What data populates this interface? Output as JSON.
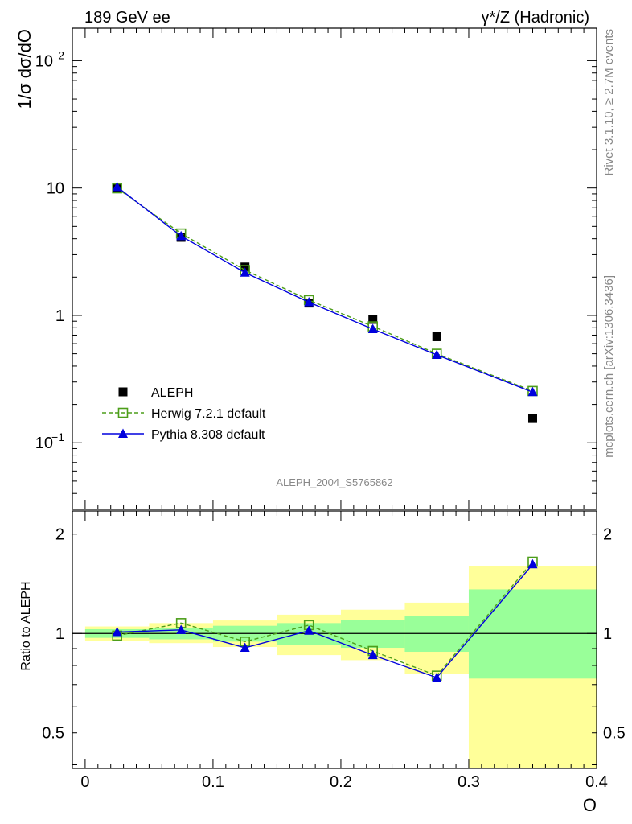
{
  "header": {
    "left": "189 GeV ee",
    "right": "γ*/Z (Hadronic)"
  },
  "side_text": {
    "rivet": "Rivet 3.1.10, ≥ 2.7M events",
    "mcplots": "mcplots.cern.ch [arXiv:1306.3436]"
  },
  "watermark": "ALEPH_2004_S5765862",
  "chart_data": [
    {
      "type": "scatter",
      "panel": "main",
      "ylabel": "1/σ  dσ/dO",
      "yscale": "log",
      "ylim": [
        0.03,
        180
      ],
      "xlim": [
        -0.01,
        0.4
      ],
      "grid": false,
      "legend_placement": "lower-left",
      "yticks": [
        {
          "v": 100,
          "label": "10",
          "sup": "2"
        },
        {
          "v": 10,
          "label": "10",
          "sup": ""
        },
        {
          "v": 1,
          "label": "1",
          "sup": ""
        },
        {
          "v": 0.1,
          "label": "10",
          "sup": "−1"
        }
      ],
      "series": [
        {
          "name": "ALEPH",
          "style": "square-filled",
          "color": "#000000",
          "points": [
            {
              "x": 0.025,
              "y": 10.1
            },
            {
              "x": 0.075,
              "y": 4.1
            },
            {
              "x": 0.125,
              "y": 2.4
            },
            {
              "x": 0.175,
              "y": 1.25
            },
            {
              "x": 0.225,
              "y": 0.93
            },
            {
              "x": 0.275,
              "y": 0.68
            },
            {
              "x": 0.35,
              "y": 0.155
            }
          ]
        },
        {
          "name": "Herwig 7.2.1 default",
          "style": "square-open-dashed",
          "color": "#4d9e1a",
          "points": [
            {
              "x": 0.025,
              "y": 9.95
            },
            {
              "x": 0.075,
              "y": 4.4
            },
            {
              "x": 0.125,
              "y": 2.27
            },
            {
              "x": 0.175,
              "y": 1.32
            },
            {
              "x": 0.225,
              "y": 0.82
            },
            {
              "x": 0.275,
              "y": 0.5
            },
            {
              "x": 0.35,
              "y": 0.255
            }
          ]
        },
        {
          "name": "Pythia 8.308 default",
          "style": "triangle-filled-solid",
          "color": "#0000dd",
          "points": [
            {
              "x": 0.025,
              "y": 10.2
            },
            {
              "x": 0.075,
              "y": 4.2
            },
            {
              "x": 0.125,
              "y": 2.17
            },
            {
              "x": 0.175,
              "y": 1.27
            },
            {
              "x": 0.225,
              "y": 0.78
            },
            {
              "x": 0.275,
              "y": 0.49
            },
            {
              "x": 0.35,
              "y": 0.25
            }
          ]
        }
      ]
    },
    {
      "type": "line",
      "panel": "ratio",
      "ylabel": "Ratio to ALEPH",
      "xlabel": "O",
      "yscale": "log",
      "ylim": [
        0.39,
        2.35
      ],
      "xlim": [
        -0.01,
        0.4
      ],
      "xticks": [
        {
          "v": 0,
          "label": "0"
        },
        {
          "v": 0.1,
          "label": "0.1"
        },
        {
          "v": 0.2,
          "label": "0.2"
        },
        {
          "v": 0.3,
          "label": "0.3"
        },
        {
          "v": 0.4,
          "label": "0.4"
        }
      ],
      "yticks": [
        {
          "v": 2,
          "label": "2"
        },
        {
          "v": 1,
          "label": "1"
        },
        {
          "v": 0.5,
          "label": "0.5"
        }
      ],
      "bands": [
        {
          "x0": 0.0,
          "x1": 0.05,
          "yellow": [
            0.95,
            1.05
          ],
          "green": [
            0.97,
            1.03
          ]
        },
        {
          "x0": 0.05,
          "x1": 0.1,
          "yellow": [
            0.935,
            1.075
          ],
          "green": [
            0.96,
            1.04
          ]
        },
        {
          "x0": 0.1,
          "x1": 0.15,
          "yellow": [
            0.91,
            1.095
          ],
          "green": [
            0.945,
            1.055
          ]
        },
        {
          "x0": 0.15,
          "x1": 0.2,
          "yellow": [
            0.86,
            1.14
          ],
          "green": [
            0.925,
            1.075
          ]
        },
        {
          "x0": 0.2,
          "x1": 0.25,
          "yellow": [
            0.83,
            1.18
          ],
          "green": [
            0.905,
            1.1
          ]
        },
        {
          "x0": 0.25,
          "x1": 0.3,
          "yellow": [
            0.755,
            1.24
          ],
          "green": [
            0.88,
            1.13
          ]
        },
        {
          "x0": 0.3,
          "x1": 0.4,
          "yellow": [
            0.39,
            1.6
          ],
          "green": [
            0.73,
            1.36
          ]
        }
      ],
      "series": [
        {
          "name": "Herwig 7.2.1 default",
          "style": "square-open-dashed",
          "color": "#4d9e1a",
          "points": [
            {
              "x": 0.025,
              "y": 0.985
            },
            {
              "x": 0.075,
              "y": 1.075
            },
            {
              "x": 0.125,
              "y": 0.945
            },
            {
              "x": 0.175,
              "y": 1.06
            },
            {
              "x": 0.225,
              "y": 0.885
            },
            {
              "x": 0.275,
              "y": 0.745
            },
            {
              "x": 0.35,
              "y": 1.65
            }
          ]
        },
        {
          "name": "Pythia 8.308 default",
          "style": "triangle-filled-solid",
          "color": "#0000dd",
          "points": [
            {
              "x": 0.025,
              "y": 1.01
            },
            {
              "x": 0.075,
              "y": 1.025
            },
            {
              "x": 0.125,
              "y": 0.905
            },
            {
              "x": 0.175,
              "y": 1.02
            },
            {
              "x": 0.225,
              "y": 0.86
            },
            {
              "x": 0.275,
              "y": 0.735
            },
            {
              "x": 0.35,
              "y": 1.62
            }
          ]
        }
      ]
    }
  ]
}
